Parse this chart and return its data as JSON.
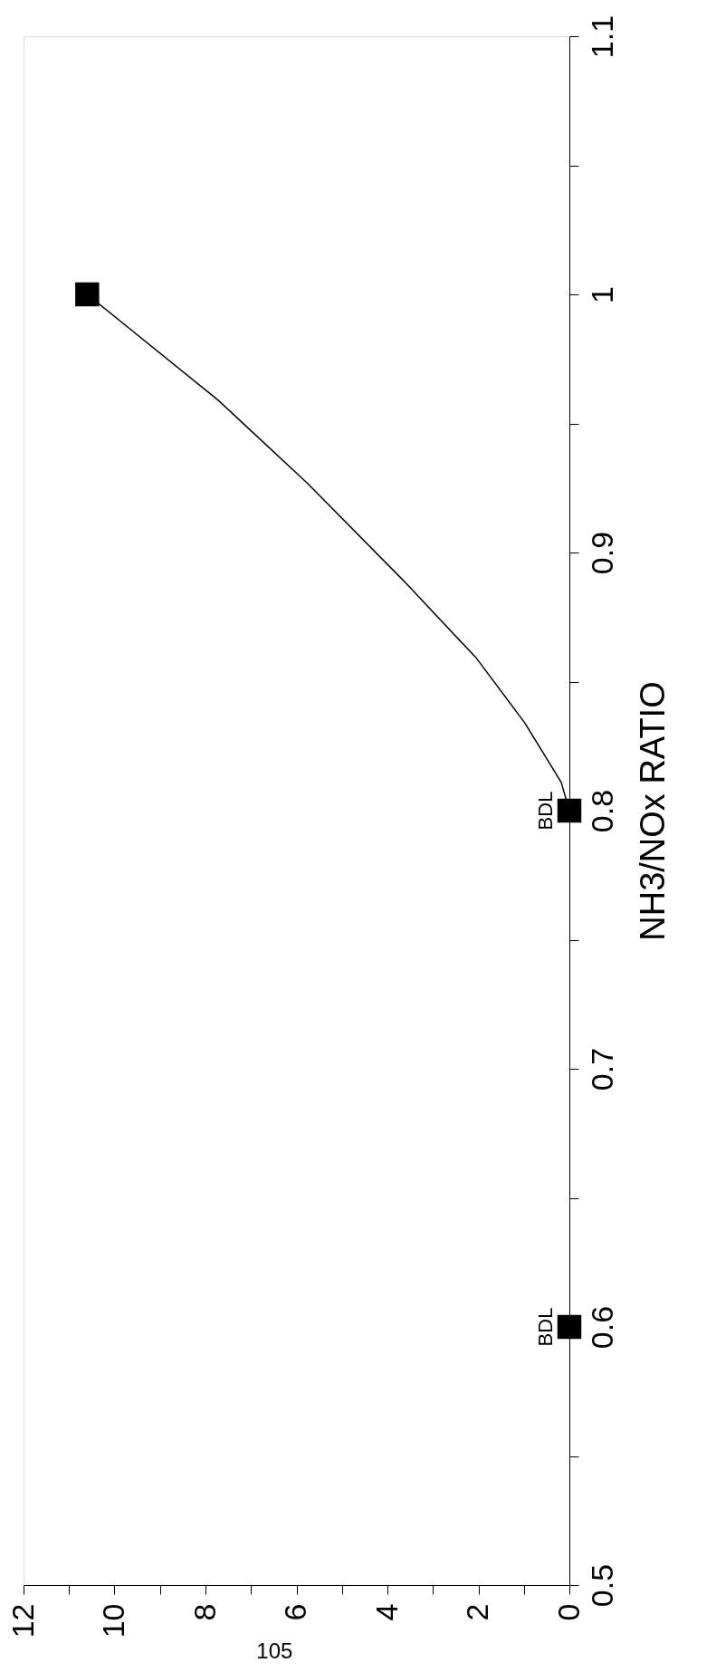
{
  "chart_data": {
    "type": "line",
    "ylabel": "NH3/NOx RATIO",
    "ylim": [
      0.5,
      1.1
    ],
    "yticks": [
      0.5,
      {
        "value": 0.55,
        "label": null
      },
      0.6,
      {
        "value": 0.65,
        "label": null
      },
      0.7,
      {
        "value": 0.75,
        "label": null
      },
      0.8,
      {
        "value": 0.85,
        "label": null
      },
      0.9,
      {
        "value": 0.95,
        "label": null
      },
      1,
      {
        "value": 1.05,
        "label": null
      },
      1.1
    ],
    "xlim": [
      12,
      0
    ],
    "xticks": [
      12,
      {
        "value": 11,
        "label": null
      },
      10,
      {
        "value": 9,
        "label": null
      },
      8,
      {
        "value": 7,
        "label": null
      },
      6,
      {
        "value": 5,
        "label": null
      },
      4,
      {
        "value": 3,
        "label": null
      },
      2,
      {
        "value": 1,
        "label": null
      },
      0
    ],
    "grid": false,
    "series": [
      {
        "type": "scatter",
        "marker": "square",
        "color": "#000000",
        "x": [
          0,
          0,
          10.6
        ],
        "values": [
          0.6,
          0.8,
          1.0
        ]
      },
      {
        "marker": "none",
        "line_style": "solid",
        "color": "#000000",
        "x": [
          0,
          0.18,
          0.98,
          2.04,
          3.64,
          5.77,
          7.72,
          10.6
        ],
        "values": [
          0.8,
          0.811,
          0.834,
          0.859,
          0.889,
          0.927,
          0.959,
          1.0
        ]
      }
    ],
    "annotations": [
      {
        "text": "BDL",
        "x": 0,
        "y": 0.6
      },
      {
        "text": "BDL",
        "x": 0,
        "y": 0.8
      },
      "105"
    ]
  }
}
